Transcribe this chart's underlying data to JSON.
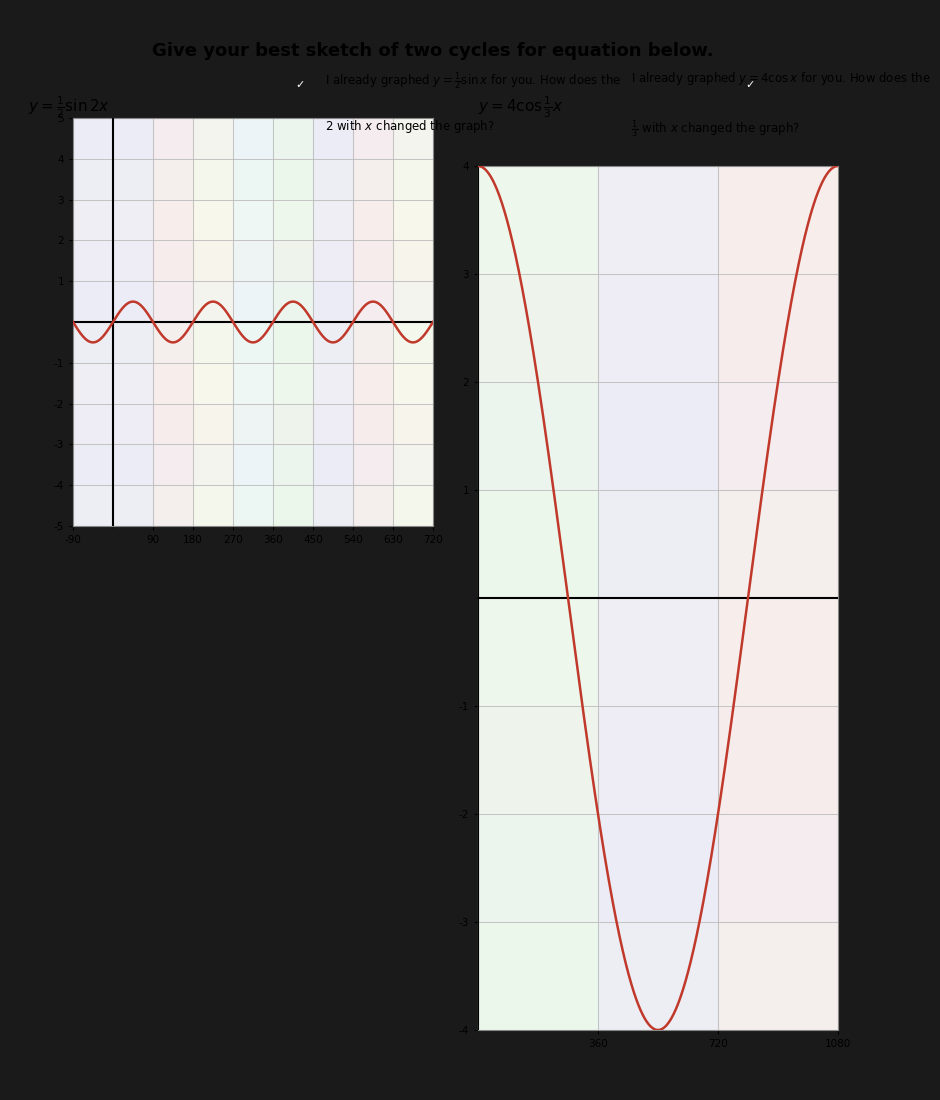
{
  "title": "Give your best sketch of two cycles for equation below.",
  "graph1": {
    "equation_tex": "$y = \\frac{1}{2}\\sin 2x$",
    "pretext": "I already graphed $y = \\frac{1}{2}\\sin x$ for you. How does the",
    "posttext": "$2$ with $x$ changed the graph?",
    "amplitude": 0.5,
    "xmin": -90,
    "xmax": 720,
    "xticks": [
      -90,
      90,
      180,
      270,
      360,
      450,
      540,
      630,
      720
    ],
    "xticklabels": [
      "-90",
      "90",
      "180",
      "270",
      "360",
      "450",
      "540",
      "630",
      "720"
    ],
    "ymin": -5,
    "ymax": 5,
    "yticks": [
      -5,
      -4,
      -3,
      -2,
      -1,
      1,
      2,
      3,
      4,
      5
    ],
    "yticklabels": [
      "-5",
      "-4",
      "-3",
      "-2",
      "-1",
      "1",
      "2",
      "3",
      "4",
      "5"
    ]
  },
  "graph2": {
    "equation_tex": "$y = 4\\cos\\frac{1}{3}x$",
    "pretext": "I already graphed $y = 4\\cos x$ for you. How does the",
    "posttext": "$\\frac{1}{3}$ with $x$ changed the graph?",
    "amplitude": 4,
    "xmin": 0,
    "xmax": 1080,
    "xticks": [
      360,
      720,
      1080
    ],
    "xticklabels": [
      "360",
      "720",
      "1080"
    ],
    "ymin": -4,
    "ymax": 4,
    "yticks": [
      -4,
      -3,
      -2,
      -1,
      1,
      2,
      3,
      4
    ],
    "yticklabels": [
      "-4",
      "-3",
      "-2",
      "-1",
      "1",
      "2",
      "3",
      "4"
    ]
  },
  "curve_color": "#c0392b",
  "grid_major_color": "#aaaaaa",
  "grid_minor_color": "#cccccc",
  "bg_pastel_colors": [
    "#e8f5e8",
    "#e8e8f5",
    "#f5e8e8",
    "#f5f5e8",
    "#e8f5f5"
  ],
  "tablet_bg": "#1a1a1a",
  "screen_bg": "#d8d8d8",
  "paper_bg": "#f0ede8"
}
